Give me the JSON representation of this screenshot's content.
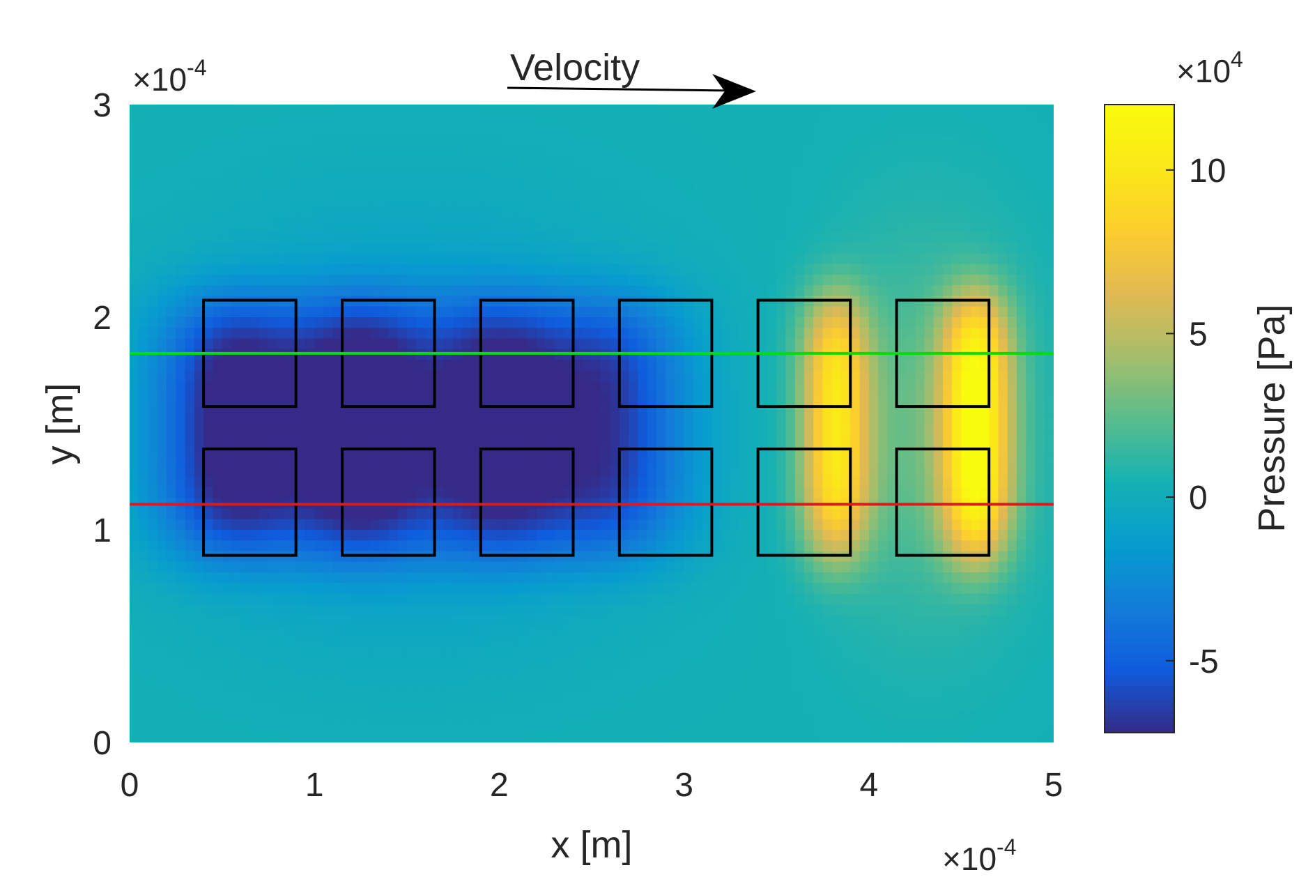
{
  "chart_data": {
    "type": "heatmap",
    "title": "",
    "annotation": {
      "text": "Velocity",
      "icon": "right-arrow-icon"
    },
    "xlabel": "x [m]",
    "ylabel": "y [m]",
    "xlim": [
      0,
      5
    ],
    "ylim": [
      0,
      3
    ],
    "x_ticks": [
      "0",
      "1",
      "2",
      "3",
      "4",
      "5"
    ],
    "y_ticks": [
      "0",
      "1",
      "2",
      "3"
    ],
    "x_exponent": {
      "base": "×10",
      "power": "-4"
    },
    "y_exponent": {
      "base": "×10",
      "power": "-4"
    },
    "colorbar": {
      "label": "Pressure [Pa]",
      "range": [
        -7.2,
        12
      ],
      "ticks": [
        "-5",
        "0",
        "5",
        "10"
      ],
      "tick_values": [
        -5,
        0,
        5,
        10
      ],
      "exponent": {
        "base": "×10",
        "power": "4"
      },
      "colormap": "parula"
    },
    "pillars": {
      "columns_x": [
        [
          0.4,
          0.9
        ],
        [
          1.15,
          1.65
        ],
        [
          1.9,
          2.4
        ],
        [
          2.65,
          3.15
        ],
        [
          3.4,
          3.9
        ],
        [
          4.15,
          4.65
        ]
      ],
      "rows_y": [
        [
          0.88,
          1.38
        ],
        [
          1.58,
          2.08
        ]
      ],
      "edge_color": "#000000"
    },
    "lines": [
      {
        "y": 1.83,
        "color": "#00e000"
      },
      {
        "y": 1.12,
        "color": "#d81c1c"
      }
    ],
    "background_value": 0.4
  }
}
